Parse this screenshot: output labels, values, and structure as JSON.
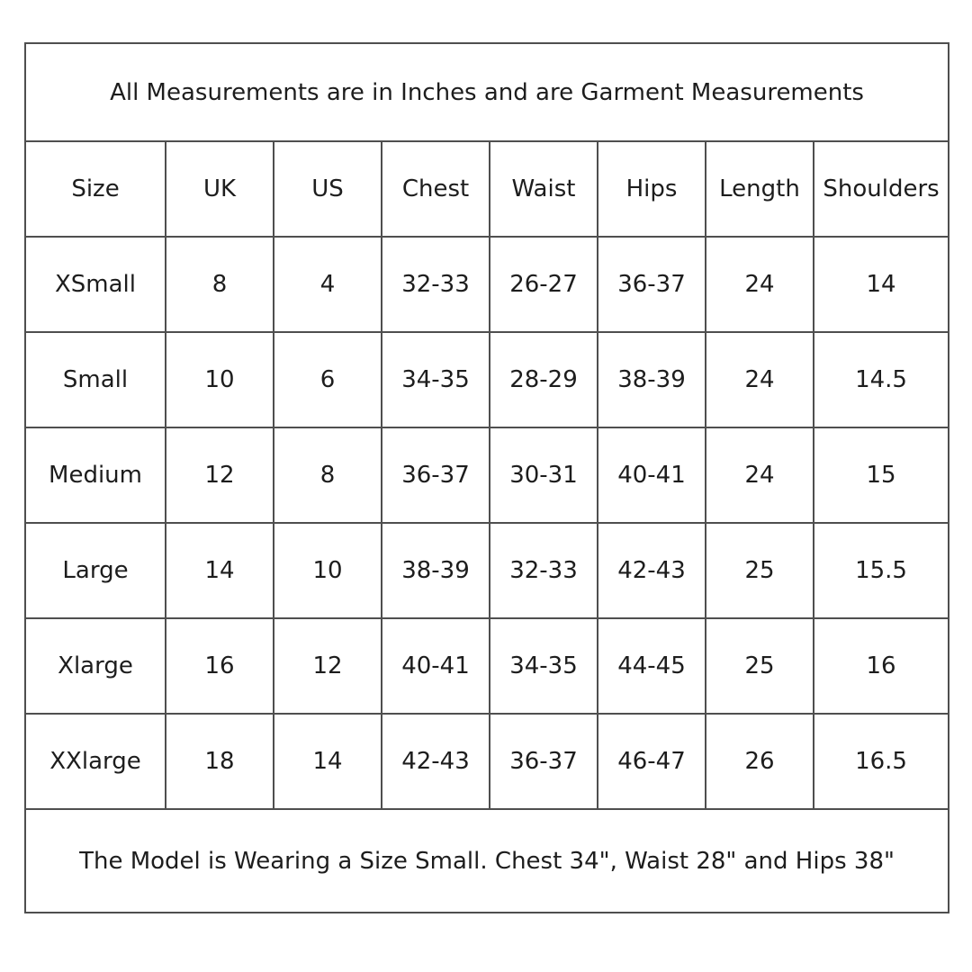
{
  "table": {
    "title": "All Measurements are in Inches and are Garment Measurements",
    "columns": [
      "Size",
      "UK",
      "US",
      "Chest",
      "Waist",
      "Hips",
      "Length",
      "Shoulders"
    ],
    "rows": [
      [
        "XSmall",
        "8",
        "4",
        "32-33",
        "26-27",
        "36-37",
        "24",
        "14"
      ],
      [
        "Small",
        "10",
        "6",
        "34-35",
        "28-29",
        "38-39",
        "24",
        "14.5"
      ],
      [
        "Medium",
        "12",
        "8",
        "36-37",
        "30-31",
        "40-41",
        "24",
        "15"
      ],
      [
        "Large",
        "14",
        "10",
        "38-39",
        "32-33",
        "42-43",
        "25",
        "15.5"
      ],
      [
        "Xlarge",
        "16",
        "12",
        "40-41",
        "34-35",
        "44-45",
        "25",
        "16"
      ],
      [
        "XXlarge",
        "18",
        "14",
        "42-43",
        "36-37",
        "46-47",
        "26",
        "16.5"
      ]
    ],
    "footnote": "The Model is Wearing  a Size Small. Chest 34\", Waist 28\" and Hips 38\"",
    "colors": {
      "border": "#4f4f4f",
      "text": "#1d1d1d",
      "background": "#ffffff"
    }
  },
  "chart_data": {
    "type": "table",
    "title": "All Measurements are in Inches and are Garment Measurements",
    "columns": [
      "Size",
      "UK",
      "US",
      "Chest",
      "Waist",
      "Hips",
      "Length",
      "Shoulders"
    ],
    "rows": [
      [
        "XSmall",
        "8",
        "4",
        "32-33",
        "26-27",
        "36-37",
        "24",
        "14"
      ],
      [
        "Small",
        "10",
        "6",
        "34-35",
        "28-29",
        "38-39",
        "24",
        "14.5"
      ],
      [
        "Medium",
        "12",
        "8",
        "36-37",
        "30-31",
        "40-41",
        "24",
        "15"
      ],
      [
        "Large",
        "14",
        "10",
        "38-39",
        "32-33",
        "42-43",
        "25",
        "15.5"
      ],
      [
        "Xlarge",
        "16",
        "12",
        "40-41",
        "34-35",
        "44-45",
        "25",
        "16"
      ],
      [
        "XXlarge",
        "18",
        "14",
        "42-43",
        "36-37",
        "46-47",
        "26",
        "16.5"
      ]
    ],
    "annotations": [
      "The Model is Wearing  a Size Small. Chest 34\", Waist 28\" and Hips 38\""
    ]
  }
}
